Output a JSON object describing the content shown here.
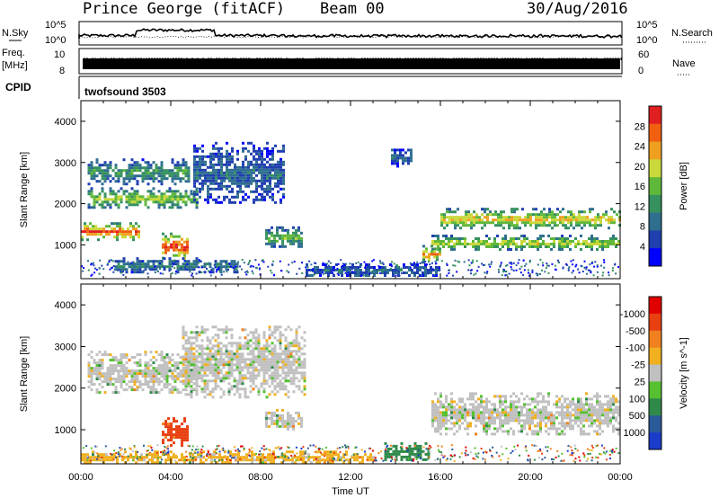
{
  "header": {
    "station": "Prince George (fitACF)",
    "beam": "Beam 00",
    "date": "30/Aug/2016"
  },
  "strips": {
    "nsky_label": "N.Sky",
    "nsearch_label": "N.Search",
    "nsky_ticks": [
      "10^5",
      "10^0"
    ],
    "nsearch_ticks": [
      "10^5",
      "10^0"
    ],
    "freq_label": "Freq.",
    "freq_unit": "[MHz]",
    "freq_ticks": [
      "10",
      "8"
    ],
    "nave_label": "Nave",
    "nave_ticks": [
      "60",
      "0"
    ],
    "cpid_label": "CPID",
    "cpid_value": "twofsound 3503"
  },
  "chart_data": [
    {
      "type": "heatmap",
      "panel": "power",
      "ylabel": "Slant Range [km]",
      "ylim": [
        180,
        4500
      ],
      "yticks": [
        1000,
        2000,
        3000,
        4000
      ],
      "xlim_hours": [
        0,
        24
      ],
      "xtick_labels": [
        "00:00",
        "04:00",
        "08:00",
        "12:00",
        "16:00",
        "20:00",
        "00:00"
      ],
      "colorbar": {
        "label": "Power [dB]",
        "ticks": [
          "4",
          "8",
          "12",
          "16",
          "20",
          "24",
          "28"
        ],
        "colors": [
          "#0000ff",
          "#1f3fb0",
          "#2f6e8f",
          "#35915e",
          "#5fb83a",
          "#c9d83a",
          "#f0a020",
          "#f06010",
          "#e02020"
        ]
      },
      "echo_regions": [
        {
          "hours": [
            0.0,
            2.6
          ],
          "range_km": [
            1150,
            1550
          ],
          "value": 26
        },
        {
          "hours": [
            0.3,
            5.2
          ],
          "range_km": [
            1900,
            2400
          ],
          "value": 17
        },
        {
          "hours": [
            0.3,
            4.8
          ],
          "range_km": [
            2500,
            3100
          ],
          "value": 12
        },
        {
          "hours": [
            3.6,
            4.8
          ],
          "range_km": [
            650,
            1300
          ],
          "value": 27
        },
        {
          "hours": [
            1.5,
            7.0
          ],
          "range_km": [
            350,
            700
          ],
          "value": 10
        },
        {
          "hours": [
            5.0,
            9.0
          ],
          "range_km": [
            2000,
            3500
          ],
          "value": 8
        },
        {
          "hours": [
            8.2,
            9.8
          ],
          "range_km": [
            950,
            1450
          ],
          "value": 14
        },
        {
          "hours": [
            13.8,
            14.7
          ],
          "range_km": [
            2900,
            3400
          ],
          "value": 8
        },
        {
          "hours": [
            15.6,
            24.0
          ],
          "range_km": [
            900,
            1250
          ],
          "value": 18
        },
        {
          "hours": [
            16.0,
            24.0
          ],
          "range_km": [
            1400,
            1900
          ],
          "value": 20
        },
        {
          "hours": [
            15.2,
            16.0
          ],
          "range_km": [
            600,
            1000
          ],
          "value": 22
        },
        {
          "hours": [
            10.0,
            16.0
          ],
          "range_km": [
            250,
            550
          ],
          "value": 8
        }
      ]
    },
    {
      "type": "heatmap",
      "panel": "velocity",
      "ylabel": "Slant Range [km]",
      "xlabel": "Time UT",
      "ylim": [
        180,
        4500
      ],
      "yticks": [
        1000,
        2000,
        3000,
        4000
      ],
      "xlim_hours": [
        0,
        24
      ],
      "xtick_labels": [
        "00:00",
        "04:00",
        "08:00",
        "12:00",
        "16:00",
        "20:00",
        "00:00"
      ],
      "colorbar": {
        "label": "Velocity [m s^-1]",
        "ticks": [
          "1000",
          "500",
          "100",
          "25",
          "-25",
          "-100",
          "-500",
          "-1000"
        ],
        "colors": [
          "#1a3cc8",
          "#2a5a9a",
          "#2f8a4a",
          "#55c030",
          "#c0c0c0",
          "#f0b020",
          "#f08020",
          "#e84010",
          "#e00000"
        ]
      },
      "echo_regions": [
        {
          "hours": [
            0.3,
            5.2
          ],
          "range_km": [
            1900,
            2900
          ],
          "value": 0
        },
        {
          "hours": [
            3.6,
            4.8
          ],
          "range_km": [
            600,
            1300
          ],
          "value": -600
        },
        {
          "hours": [
            4.5,
            10.0
          ],
          "range_km": [
            1800,
            3500
          ],
          "value": 0
        },
        {
          "hours": [
            8.2,
            9.8
          ],
          "range_km": [
            1000,
            1500
          ],
          "value": 0
        },
        {
          "hours": [
            15.6,
            24.0
          ],
          "range_km": [
            900,
            1900
          ],
          "value": 0
        },
        {
          "hours": [
            13.5,
            15.5
          ],
          "range_km": [
            250,
            700
          ],
          "value": 300
        },
        {
          "hours": [
            0.0,
            13.0
          ],
          "range_km": [
            200,
            500
          ],
          "value": -50
        }
      ]
    }
  ]
}
